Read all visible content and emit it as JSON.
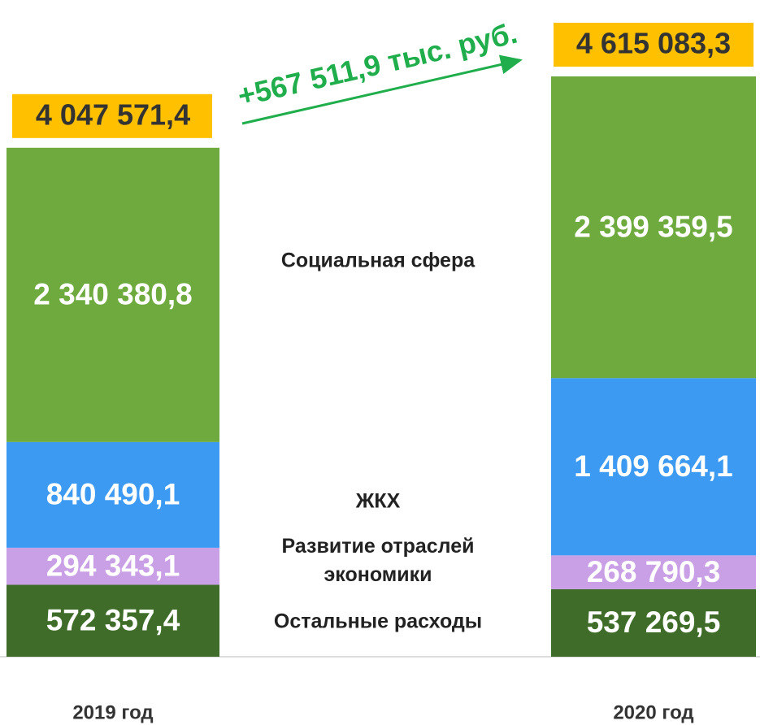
{
  "chart_data": {
    "type": "stacked_bar",
    "categories": [
      "2019 год",
      "2020 год"
    ],
    "series": [
      {
        "name": "Остальные расходы",
        "color": "#3f6d29",
        "values": [
          572357.4,
          537269.5
        ],
        "value_labels": [
          "572 357,4",
          "537 269,5"
        ]
      },
      {
        "name": "Развитие отраслей экономики",
        "color": "#c9a0e6",
        "values": [
          294343.1,
          268790.3
        ],
        "value_labels": [
          "294 343,1",
          "268 790,3"
        ]
      },
      {
        "name": "ЖКХ",
        "color": "#3d9af2",
        "values": [
          840490.1,
          1409664.1
        ],
        "value_labels": [
          "840 490,1",
          "1 409 664,1"
        ]
      },
      {
        "name": "Социальная сфера",
        "color": "#6faa3f",
        "values": [
          2340380.8,
          2399359.5
        ],
        "value_labels": [
          "2 340 380,8",
          "2 399 359,5"
        ]
      }
    ],
    "totals": {
      "values": [
        4047571.4,
        4615083.3
      ],
      "value_labels": [
        "4 047 571,4",
        "4 615 083,3"
      ],
      "color": "#ffc000"
    },
    "annotation": "+567 511,9 тыс. руб."
  }
}
